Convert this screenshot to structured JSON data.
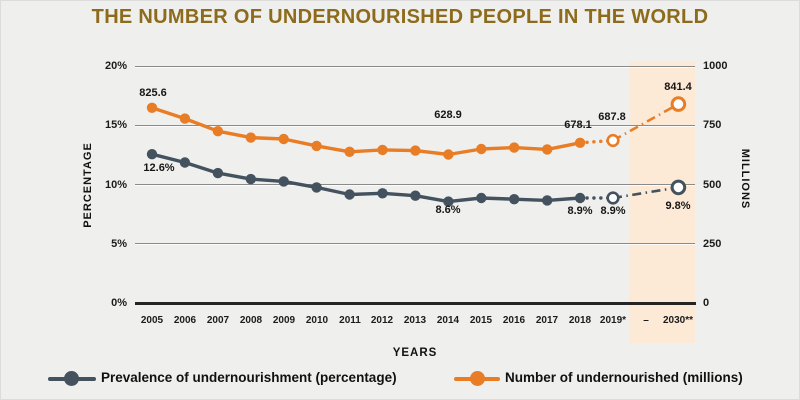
{
  "title": "THE NUMBER OF UNDERNOURISHED PEOPLE IN THE WORLD",
  "colors": {
    "background": "#EFEFEE",
    "title": "#8D6B1C",
    "projection_band": "#FCE9D6",
    "prevalence_line": "#44525F",
    "number_line": "#E87D26",
    "gridline": "#8A8A8A",
    "axis_line": "#242424",
    "marker_open_fill": "#FFFFFF"
  },
  "y_axis_left": {
    "label": "PERCENTAGE",
    "ticks": [
      "20%",
      "15%",
      "10%",
      "5%",
      "0%"
    ]
  },
  "y_axis_right": {
    "label": "MILLIONS",
    "ticks": [
      "1000",
      "750",
      "500",
      "250",
      "0"
    ]
  },
  "x_axis": {
    "label": "YEARS",
    "ticks": [
      "2005",
      "2006",
      "2007",
      "2008",
      "2009",
      "2010",
      "2011",
      "2012",
      "2013",
      "2014",
      "2015",
      "2016",
      "2017",
      "2018",
      "2019*",
      "–",
      "2030**"
    ]
  },
  "annotations": {
    "nou_2005": "825.6",
    "pou_2005": "12.6%",
    "nou_2014": "628.9",
    "pou_2014": "8.6%",
    "nou_2018": "678.1",
    "nou_2019": "687.8",
    "pou_2018": "8.9%",
    "pou_2019": "8.9%",
    "nou_2030": "841.4",
    "pou_2030": "9.8%"
  },
  "legend": {
    "items": [
      {
        "label": "Prevalence of undernourishment (percentage)",
        "color": "#44525F"
      },
      {
        "label": "Number of undernourished (millions)",
        "color": "#E87D26"
      }
    ]
  },
  "chart_data": {
    "type": "line",
    "categories": [
      "2005",
      "2006",
      "2007",
      "2008",
      "2009",
      "2010",
      "2011",
      "2012",
      "2013",
      "2014",
      "2015",
      "2016",
      "2017",
      "2018",
      "2019*",
      "2030**"
    ],
    "series": [
      {
        "name": "Prevalence of undernourishment (percentage)",
        "axis": "left",
        "unit": "percent",
        "color": "#44525F",
        "values": [
          12.6,
          11.9,
          11.0,
          10.5,
          10.3,
          9.8,
          9.2,
          9.3,
          9.1,
          8.6,
          8.9,
          8.8,
          8.7,
          8.9,
          8.9,
          9.8
        ]
      },
      {
        "name": "Number of undernourished (millions)",
        "axis": "right",
        "unit": "millions",
        "color": "#E87D26",
        "values": [
          825.6,
          780,
          727,
          700,
          694,
          665,
          640,
          648,
          645,
          628.9,
          652,
          658,
          650,
          678.1,
          687.8,
          841.4
        ]
      }
    ],
    "axes": {
      "left": {
        "label": "PERCENTAGE",
        "range": [
          0,
          20
        ]
      },
      "right": {
        "label": "MILLIONS",
        "range": [
          0,
          1000
        ]
      },
      "x": {
        "label": "YEARS"
      }
    },
    "style_notes": {
      "solid_segment": "2005 to 2018",
      "dotted_segment": "2018 to 2019*",
      "dashdot_segment": "2019* to 2030**",
      "open_markers": [
        "2019*",
        "2030**"
      ],
      "shaded_projection_band": "2019* to 2030**",
      "grid": "horizontal gridlines at every 5% / 250 million"
    }
  }
}
